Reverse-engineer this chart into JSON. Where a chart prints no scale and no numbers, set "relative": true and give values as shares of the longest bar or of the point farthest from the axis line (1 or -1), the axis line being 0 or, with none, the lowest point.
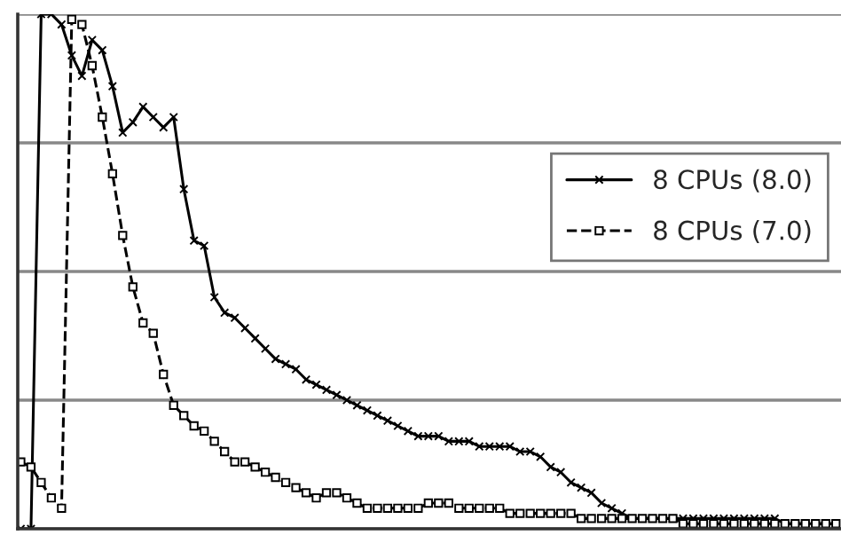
{
  "chart_data": {
    "type": "line",
    "relative": true,
    "grid": "y",
    "legend": "right",
    "categories": [
      null,
      null,
      null,
      null,
      null,
      null,
      null,
      null,
      null,
      null,
      null,
      null,
      null,
      null,
      null,
      null,
      null,
      null,
      null,
      null,
      null,
      null,
      null,
      null,
      null,
      null,
      null,
      null,
      null,
      null,
      null,
      null,
      null,
      null,
      null,
      null,
      null,
      null,
      null,
      null,
      null,
      null,
      null,
      null,
      null,
      null,
      null,
      null,
      null,
      null,
      null,
      null,
      null,
      null,
      null,
      null,
      null,
      null,
      null,
      null,
      null,
      null,
      null,
      null,
      null,
      null,
      null,
      null,
      null,
      null,
      null,
      null,
      null,
      null,
      null,
      null,
      null,
      null,
      null,
      null,
      null
    ],
    "series": [
      {
        "name": "8 CPUs (8.0)",
        "color": "#000000",
        "marker": "cross",
        "line_style": "solid",
        "values": [
          0,
          0,
          1,
          1,
          0.98,
          0.92,
          0.88,
          0.95,
          0.93,
          0.86,
          0.77,
          0.79,
          0.82,
          0.8,
          0.78,
          0.8,
          0.66,
          0.56,
          0.55,
          0.45,
          0.42,
          0.41,
          0.39,
          0.37,
          0.35,
          0.33,
          0.32,
          0.31,
          0.29,
          0.28,
          0.27,
          0.26,
          0.25,
          0.24,
          0.23,
          0.22,
          0.21,
          0.2,
          0.19,
          0.18,
          0.18,
          0.18,
          0.17,
          0.17,
          0.17,
          0.16,
          0.16,
          0.16,
          0.16,
          0.15,
          0.15,
          0.14,
          0.12,
          0.11,
          0.09,
          0.08,
          0.07,
          0.05,
          0.04,
          0.03,
          0.02,
          0.02,
          0.02,
          0.02,
          0.02,
          0.02,
          0.02,
          0.02,
          0.02,
          0.02,
          0.02,
          0.02,
          0.02,
          0.02,
          0.02,
          0.01,
          0.01,
          0.01,
          0.01,
          0.01,
          0.01
        ]
      },
      {
        "name": "8 CPUs (7.0)",
        "color": "#000000",
        "marker": "square",
        "line_style": "dashed",
        "values": [
          0.13,
          0.12,
          0.09,
          0.06,
          0.04,
          0.99,
          0.98,
          0.9,
          0.8,
          0.69,
          0.57,
          0.47,
          0.4,
          0.38,
          0.3,
          0.24,
          0.22,
          0.2,
          0.19,
          0.17,
          0.15,
          0.13,
          0.13,
          0.12,
          0.11,
          0.1,
          0.09,
          0.08,
          0.07,
          0.06,
          0.07,
          0.07,
          0.06,
          0.05,
          0.04,
          0.04,
          0.04,
          0.04,
          0.04,
          0.04,
          0.05,
          0.05,
          0.05,
          0.04,
          0.04,
          0.04,
          0.04,
          0.04,
          0.03,
          0.03,
          0.03,
          0.03,
          0.03,
          0.03,
          0.03,
          0.02,
          0.02,
          0.02,
          0.02,
          0.02,
          0.02,
          0.02,
          0.02,
          0.02,
          0.02,
          0.01,
          0.01,
          0.01,
          0.01,
          0.01,
          0.01,
          0.01,
          0.01,
          0.01,
          0.01,
          0.01,
          0.01,
          0.01,
          0.01,
          0.01,
          0.01
        ]
      }
    ]
  }
}
